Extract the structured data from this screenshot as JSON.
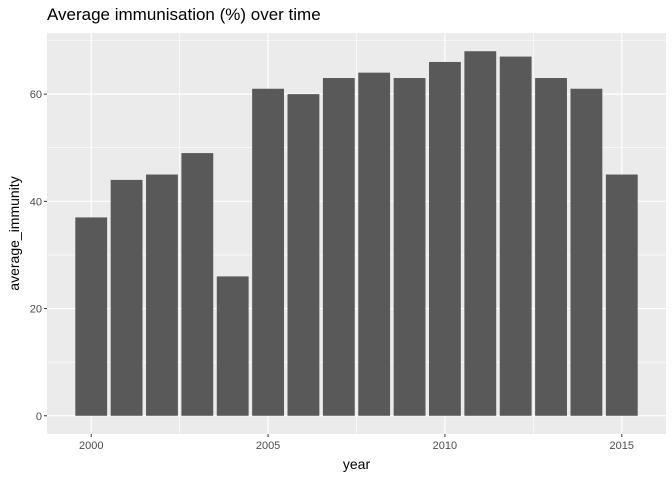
{
  "chart_data": {
    "type": "bar",
    "title": "Average immunisation (%) over time",
    "xlabel": "year",
    "ylabel": "average_immunity",
    "x": [
      2000,
      2001,
      2002,
      2003,
      2004,
      2005,
      2006,
      2007,
      2008,
      2009,
      2010,
      2011,
      2012,
      2013,
      2014,
      2015
    ],
    "values": [
      37,
      44,
      45,
      49,
      26,
      61,
      60,
      63,
      64,
      63,
      66,
      68,
      67,
      63,
      61,
      45
    ],
    "xlim": [
      1998.75,
      2016.25
    ],
    "ylim": [
      -3.4,
      71.4
    ],
    "x_ticks": [
      2000,
      2005,
      2010,
      2015
    ],
    "x_tick_labels": [
      "2000",
      "2005",
      "2010",
      "2015"
    ],
    "y_ticks": [
      0,
      20,
      40,
      60
    ],
    "y_tick_labels": [
      "0",
      "20",
      "40",
      "60"
    ],
    "grid": true,
    "legend": "none",
    "colors": {
      "panel_background": "#ebebeb",
      "grid_major": "#ffffff",
      "bar_fill": "#595959",
      "tick_label": "#4d4d4d",
      "tick_mark": "#333333"
    }
  }
}
